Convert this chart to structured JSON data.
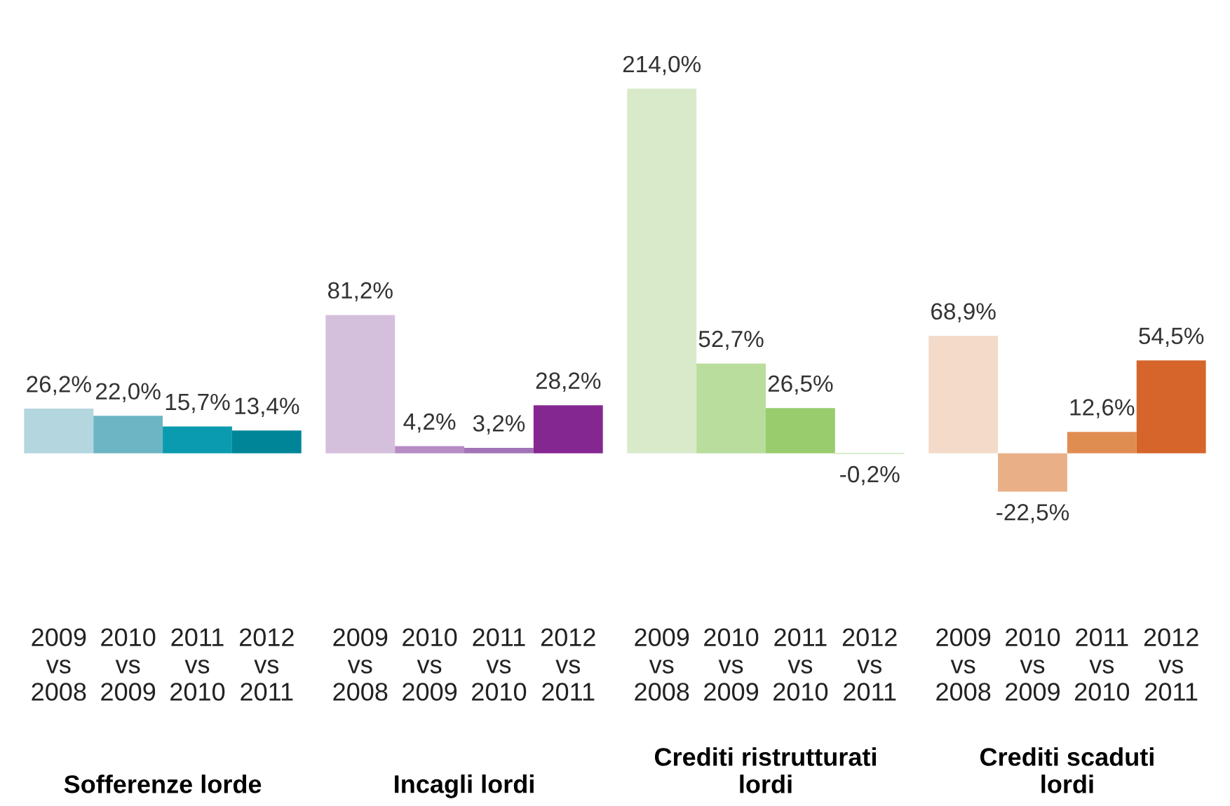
{
  "chart_data": {
    "type": "bar",
    "categories": [
      "2009\nvs\n2008",
      "2010\nvs\n2009",
      "2011\nvs\n2010",
      "2012\nvs\n2011",
      "2009\nvs\n2008",
      "2010\nvs\n2009",
      "2011\nvs\n2010",
      "2012\nvs\n2011",
      "2009\nvs\n2008",
      "2010\nvs\n2009",
      "2011\nvs\n2010",
      "2012\nvs\n2011",
      "2009\nvs\n2008",
      "2010\nvs\n2009",
      "2011\nvs\n2010",
      "2012\nvs\n2011"
    ],
    "values": [
      26.2,
      22.0,
      15.7,
      13.4,
      81.2,
      4.2,
      3.2,
      28.2,
      214.0,
      52.7,
      26.5,
      -0.2,
      68.9,
      -22.5,
      12.6,
      54.5
    ],
    "value_labels": [
      "26,2%",
      "22,0%",
      "15,7%",
      "13,4%",
      "81,2%",
      "4,2%",
      "3,2%",
      "28,2%",
      "214,0%",
      "52,7%",
      "26,5%",
      "-0,2%",
      "68,9%",
      "-22,5%",
      "12,6%",
      "54,5%"
    ],
    "colors": [
      "#b3d6df",
      "#6db5c4",
      "#0a9bb0",
      "#008598",
      "#d4bfdc",
      "#b68cc4",
      "#a373b8",
      "#852790",
      "#d9eacb",
      "#b9dd9c",
      "#98cc6d",
      "#6ab647",
      "#f4dac9",
      "#e9b088",
      "#e08d52",
      "#d5652a"
    ],
    "annotations": [
      "Sofferenze lorde",
      "Incagli lordi",
      "Crediti ristrutturati\nlordi",
      "Crediti scaduti\nlordi"
    ],
    "grid": false,
    "legend": false
  }
}
